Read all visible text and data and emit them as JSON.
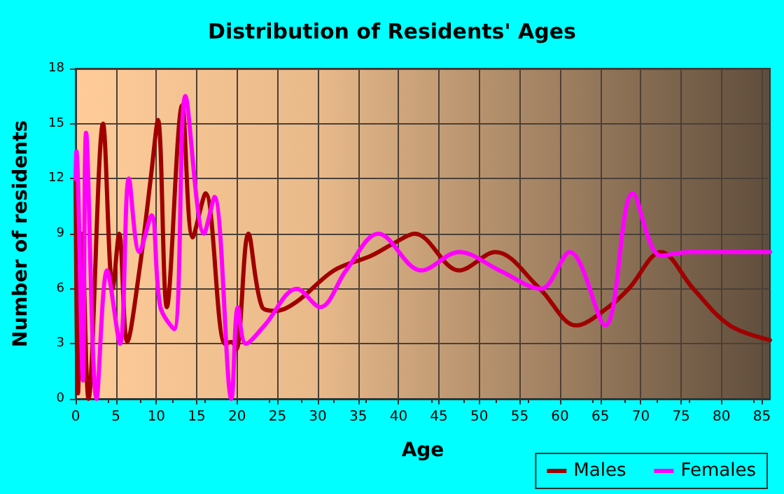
{
  "chart_data": {
    "type": "line",
    "title": "Distribution of Residents' Ages",
    "xlabel": "Age",
    "ylabel": "Number of residents",
    "series": [
      {
        "name": "Males",
        "color": "#a00000",
        "x": [
          0,
          0.3,
          0.8,
          1.6,
          3.4,
          4.6,
          5.4,
          6.4,
          7.9,
          9.3,
          10.2,
          11.3,
          13.2,
          14.5,
          16.1,
          18.5,
          19.3,
          19.9,
          21.4,
          23.1,
          24.8,
          27.4,
          32,
          36.6,
          39.5,
          42,
          47.5,
          52,
          57.5,
          62,
          66,
          68.5,
          72.5,
          76.5,
          81,
          86
        ],
        "values": [
          12,
          0.3,
          9,
          0,
          15,
          6,
          9,
          3.1,
          7,
          12,
          15.2,
          5,
          16,
          8.8,
          11.2,
          3,
          3.1,
          2.7,
          9,
          5,
          4.8,
          5.3,
          7,
          7.8,
          8.5,
          9,
          7,
          8,
          6,
          4,
          5,
          6,
          8,
          6,
          4,
          3.2
        ]
      },
      {
        "name": "Females",
        "color": "#ff00ff",
        "x": [
          0,
          0.1,
          0.9,
          1.3,
          2.6,
          3.9,
          5.5,
          6.6,
          7.9,
          9.4,
          10.5,
          12.2,
          13.6,
          15.9,
          17.2,
          19.3,
          20.1,
          21.1,
          23.4,
          27.4,
          30.3,
          33.5,
          37.5,
          42.8,
          47.5,
          52.5,
          57.6,
          61.2,
          65.6,
          69,
          72.5,
          76,
          80,
          86
        ],
        "values": [
          12,
          13.5,
          1,
          14.5,
          0,
          7,
          3,
          12,
          8,
          10,
          5,
          3.8,
          16.5,
          9,
          11,
          0,
          5,
          3,
          4,
          6,
          5,
          7,
          9,
          7,
          8,
          7,
          6,
          8,
          4,
          11.2,
          7.8,
          8,
          8,
          8
        ]
      }
    ],
    "xlim": [
      0,
      86
    ],
    "xticks": [
      0,
      5,
      10,
      15,
      20,
      25,
      30,
      35,
      40,
      45,
      50,
      55,
      60,
      65,
      70,
      75,
      80,
      85
    ],
    "ylim": [
      0,
      18
    ],
    "yticks": [
      0,
      3,
      6,
      9,
      12,
      15,
      18
    ],
    "grid": true,
    "legend": "bottom right",
    "marker": "none",
    "line_style": "solid"
  }
}
